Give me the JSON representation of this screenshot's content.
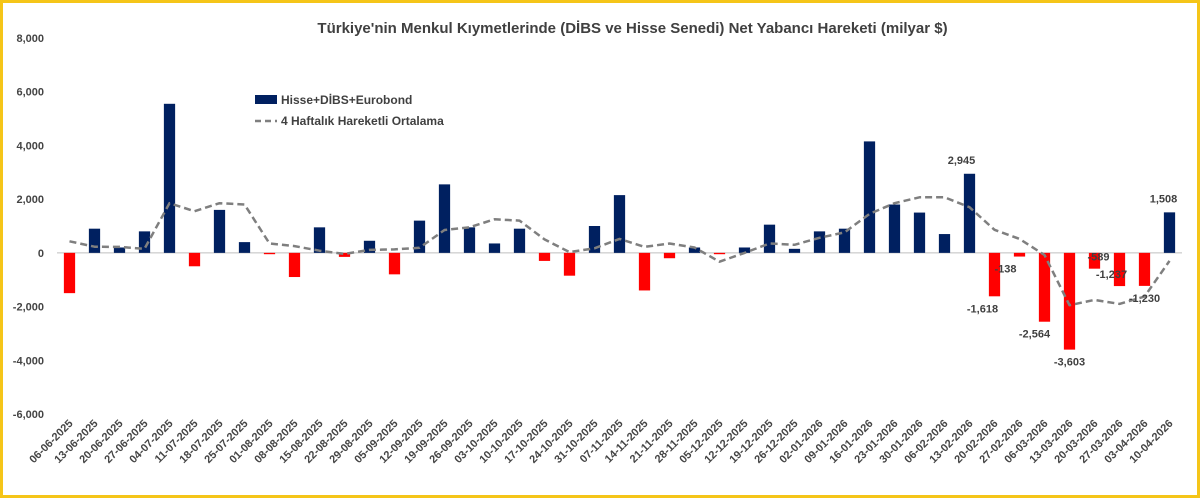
{
  "chart_data": {
    "type": "bar",
    "title": "Türkiye'nin Menkul Kıymetlerinde (DİBS ve Hisse Senedi) Net Yabancı Hareketi (milyar $)",
    "xlabel": "",
    "ylabel": "",
    "ylim": [
      -6000,
      8000
    ],
    "yticks": [
      "8,000",
      "6,000",
      "4,000",
      "2,000",
      "0",
      "-2,000",
      "-4,000",
      "-6,000"
    ],
    "grid": false,
    "legend_position": "top-left",
    "categories": [
      "06-06-2025",
      "13-06-2025",
      "20-06-2025",
      "27-06-2025",
      "04-07-2025",
      "11-07-2025",
      "18-07-2025",
      "25-07-2025",
      "01-08-2025",
      "08-08-2025",
      "15-08-2025",
      "22-08-2025",
      "29-08-2025",
      "05-09-2025",
      "12-09-2025",
      "19-09-2025",
      "26-09-2025",
      "03-10-2025",
      "10-10-2025",
      "17-10-2025",
      "24-10-2025",
      "31-10-2025",
      "07-11-2025",
      "14-11-2025",
      "21-11-2025",
      "28-11-2025",
      "05-12-2025",
      "12-12-2025",
      "19-12-2025",
      "26-12-2025",
      "02-01-2026",
      "09-01-2026",
      "16-01-2026",
      "23-01-2026",
      "30-01-2026",
      "06-02-2026",
      "13-02-2026",
      "20-02-2026",
      "27-02-2026",
      "06-03-2026",
      "13-03-2026",
      "20-03-2026",
      "27-03-2026",
      "03-04-2026",
      "10-04-2026"
    ],
    "series": [
      {
        "name": "Hisse+DİBS+Eurobond",
        "kind": "bar",
        "values": [
          -1500,
          900,
          200,
          800,
          5550,
          -500,
          1600,
          400,
          -50,
          -900,
          950,
          -150,
          450,
          -800,
          1200,
          2550,
          950,
          350,
          900,
          -300,
          -850,
          1000,
          2150,
          -1400,
          -200,
          200,
          -50,
          200,
          1050,
          150,
          800,
          900,
          4150,
          1800,
          1500,
          700,
          2945,
          -1618,
          -138,
          -2564,
          -3603,
          -589,
          -1237,
          -1230,
          1508
        ]
      },
      {
        "name": "4 Haftalık Hareketli Ortalama",
        "kind": "line",
        "values": [
          430,
          230,
          220,
          150,
          1850,
          1550,
          1850,
          1800,
          350,
          250,
          80,
          -40,
          110,
          130,
          190,
          850,
          950,
          1250,
          1200,
          500,
          30,
          170,
          520,
          220,
          350,
          200,
          -330,
          0,
          350,
          300,
          560,
          760,
          1450,
          1850,
          2070,
          2070,
          1700,
          860,
          520,
          -80,
          -1950,
          -1750,
          -1900,
          -1630,
          -300
        ]
      }
    ],
    "data_labels": [
      {
        "index": 36,
        "text": "2,945"
      },
      {
        "index": 37,
        "text": "-1,618"
      },
      {
        "index": 38,
        "text": "-138"
      },
      {
        "index": 39,
        "text": "-2,564"
      },
      {
        "index": 40,
        "text": "-3,603"
      },
      {
        "index": 41,
        "text": "-589"
      },
      {
        "index": 42,
        "text": "-1,237"
      },
      {
        "index": 43,
        "text": "-1,230"
      },
      {
        "index": 44,
        "text": "1,508"
      }
    ],
    "colors": {
      "positive_bar": "#002060",
      "negative_bar": "#ff0000",
      "moving_average": "#7f7f7f",
      "frame": "#f5c518"
    }
  }
}
